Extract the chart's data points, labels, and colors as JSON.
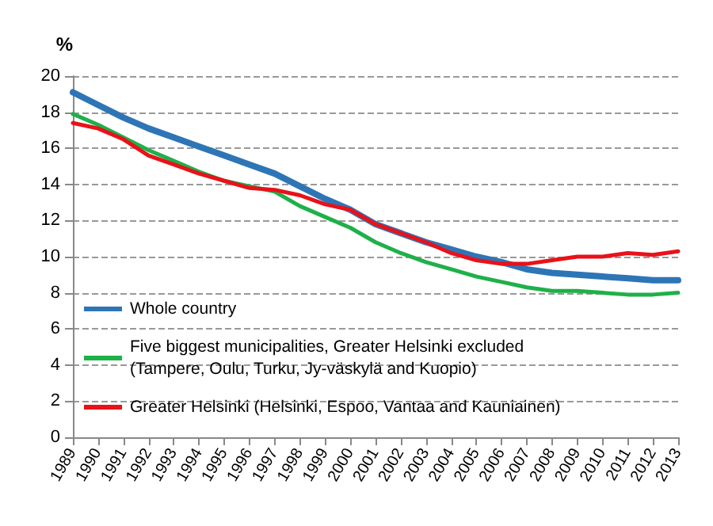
{
  "chart_data": {
    "type": "line",
    "ylabel": "%",
    "categories": [
      "1989",
      "1990",
      "1991",
      "1992",
      "1993",
      "1994",
      "1995",
      "1996",
      "1997",
      "1998",
      "1999",
      "2000",
      "2001",
      "2002",
      "2003",
      "2004",
      "2005",
      "2006",
      "2007",
      "2008",
      "2009",
      "2010",
      "2011",
      "2012",
      "2013"
    ],
    "series": [
      {
        "name": "Whole country",
        "color": "#2e75b6",
        "values": [
          19.1,
          18.4,
          17.7,
          17.1,
          16.6,
          16.1,
          15.6,
          15.1,
          14.6,
          13.9,
          13.2,
          12.6,
          11.8,
          11.3,
          10.8,
          10.4,
          10.0,
          9.7,
          9.3,
          9.1,
          9.0,
          8.9,
          8.8,
          8.7,
          8.7
        ]
      },
      {
        "name": "Five biggest municipalities, Greater Helsinki excluded (Tampere, Oulu, Turku, Jy-väskylä and Kuopio)",
        "color": "#1fb04a",
        "values": [
          17.9,
          17.3,
          16.6,
          15.9,
          15.3,
          14.7,
          14.2,
          13.9,
          13.6,
          12.8,
          12.2,
          11.6,
          10.8,
          10.2,
          9.7,
          9.3,
          8.9,
          8.6,
          8.3,
          8.1,
          8.1,
          8.0,
          7.9,
          7.9,
          8.0
        ]
      },
      {
        "name": "Greater Helsinki (Helsinki, Espoo, Vantaa and Kauniainen)",
        "color": "#e8121a",
        "values": [
          17.4,
          17.1,
          16.5,
          15.6,
          15.1,
          14.6,
          14.2,
          13.8,
          13.7,
          13.4,
          12.9,
          12.6,
          11.8,
          11.3,
          10.8,
          10.2,
          9.8,
          9.6,
          9.6,
          9.8,
          10.0,
          10.0,
          10.2,
          10.1,
          10.3
        ]
      }
    ],
    "ylim": [
      0,
      20
    ],
    "yticks": [
      0,
      2,
      4,
      6,
      8,
      10,
      12,
      14,
      16,
      18,
      20
    ],
    "grid": "y",
    "legend": "bottom left",
    "marker": "none",
    "line_style": "solid"
  }
}
